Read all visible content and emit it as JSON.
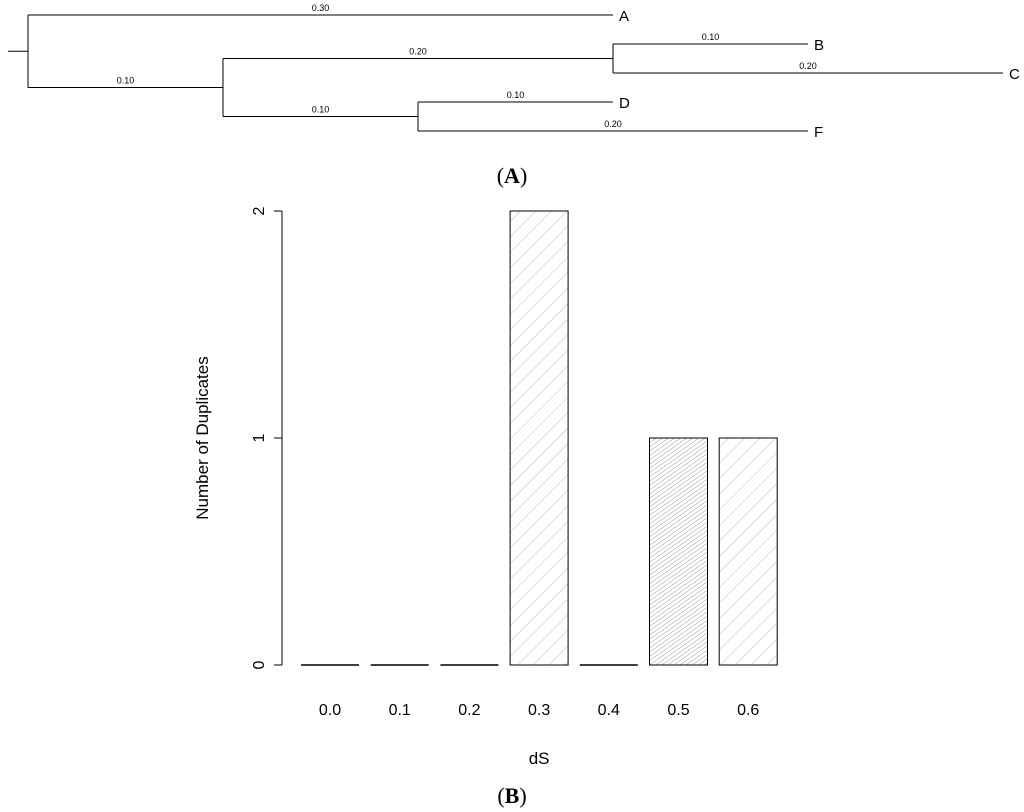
{
  "tree": {
    "leaves": [
      "A",
      "B",
      "C",
      "D",
      "F"
    ],
    "branches": [
      {
        "id": "root-stem",
        "parent": null,
        "length": null,
        "label": ""
      },
      {
        "id": "A",
        "parent": "root",
        "length": 0.3,
        "label": "0.30",
        "leaf": "A"
      },
      {
        "id": "N1",
        "parent": "root",
        "length": 0.1,
        "label": "0.10"
      },
      {
        "id": "N2",
        "parent": "N1",
        "length": 0.2,
        "label": "0.20"
      },
      {
        "id": "B",
        "parent": "N2",
        "length": 0.1,
        "label": "0.10",
        "leaf": "B"
      },
      {
        "id": "C",
        "parent": "N2",
        "length": 0.2,
        "label": "0.20",
        "leaf": "C"
      },
      {
        "id": "N3",
        "parent": "N1",
        "length": 0.1,
        "label": "0.10"
      },
      {
        "id": "D",
        "parent": "N3",
        "length": 0.1,
        "label": "0.10",
        "leaf": "D"
      },
      {
        "id": "F",
        "parent": "N3",
        "length": 0.2,
        "label": "0.20",
        "leaf": "F"
      }
    ]
  },
  "panel_a_label": {
    "open": "(",
    "letter": "A",
    "close": ")"
  },
  "panel_b_label": {
    "open": "(",
    "letter": "B",
    "close": ")"
  },
  "chart_data": [
    {
      "type": "tree",
      "description_source": "phylogram with branch lengths",
      "leaves": [
        "A",
        "B",
        "C",
        "D",
        "F"
      ],
      "branch_lengths": {
        "A": 0.3,
        "N1": 0.1,
        "N2": 0.2,
        "B": 0.1,
        "C": 0.2,
        "N3": 0.1,
        "D": 0.1,
        "F": 0.2
      }
    },
    {
      "type": "bar",
      "categories": [
        "0.0",
        "0.1",
        "0.2",
        "0.3",
        "0.4",
        "0.5",
        "0.6"
      ],
      "values": [
        0,
        0,
        0,
        2,
        0,
        1,
        1
      ],
      "fill_patterns": [
        "sparse-hatch",
        "sparse-hatch",
        "sparse-hatch",
        "sparse-hatch",
        "sparse-hatch",
        "dense-hatch",
        "sparse-hatch"
      ],
      "xlabel": "dS",
      "ylabel": "Number of Duplicates",
      "ylim": [
        0,
        2
      ],
      "yticks": [
        "0",
        "1",
        "2"
      ],
      "grid": false,
      "colors": {
        "bar_stroke": "#000000",
        "hatch_light": "#bbbbbb",
        "hatch_dense": "#888888"
      }
    }
  ]
}
